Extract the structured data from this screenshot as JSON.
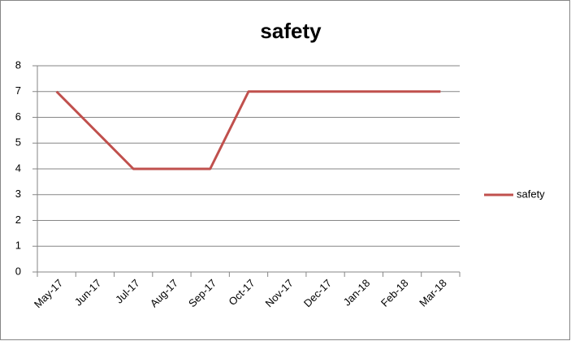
{
  "chart_data": {
    "type": "line",
    "title": "safety",
    "categories": [
      "May-17",
      "Jun-17",
      "Jul-17",
      "Aug-17",
      "Sep-17",
      "Oct-17",
      "Nov-17",
      "Dec-17",
      "Jan-18",
      "Feb-18",
      "Mar-18"
    ],
    "series": [
      {
        "name": "safety",
        "color": "#c0504d",
        "values": [
          7,
          5.5,
          4,
          4,
          4,
          7,
          7,
          7,
          7,
          7,
          7
        ]
      }
    ],
    "ylim": [
      0,
      8
    ],
    "yticks": [
      0,
      1,
      2,
      3,
      4,
      5,
      6,
      7,
      8
    ],
    "grid": true,
    "legend": "right"
  }
}
